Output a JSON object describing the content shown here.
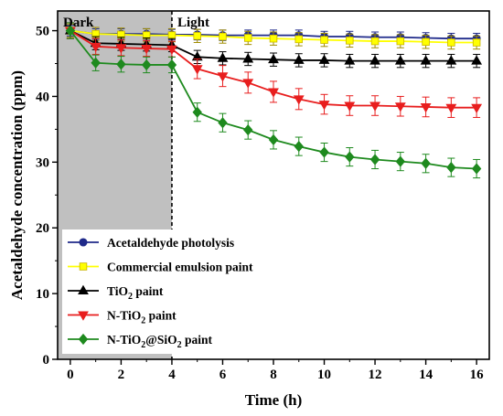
{
  "chart_data": {
    "type": "line",
    "xlabel": "Time (h)",
    "ylabel": "Acetaldehyde concentration (ppm)",
    "xlim": [
      -0.5,
      16.5
    ],
    "ylim": [
      0,
      53
    ],
    "xticks": [
      0,
      2,
      4,
      6,
      8,
      10,
      12,
      14,
      16
    ],
    "yticks": [
      0,
      10,
      20,
      30,
      40,
      50
    ],
    "regions": [
      {
        "label": "Dark",
        "x_start": -0.5,
        "x_end": 4,
        "fill": "#c0c0c0"
      },
      {
        "label": "Light",
        "x_start": 4,
        "x_end": 16.5,
        "fill": "#ffffff"
      }
    ],
    "legend_position": "bottom-left",
    "x": [
      0,
      1,
      2,
      3,
      4,
      5,
      6,
      7,
      8,
      9,
      10,
      11,
      12,
      13,
      14,
      15,
      16
    ],
    "series": [
      {
        "name": "Acetaldehyde photolysis",
        "name_main": "Acetaldehyde photolysis",
        "color": "#1f2a8a",
        "marker": "circle",
        "values": [
          50.0,
          49.5,
          49.5,
          49.5,
          49.4,
          49.4,
          49.3,
          49.3,
          49.3,
          49.3,
          49.1,
          49.1,
          49.0,
          49.0,
          48.9,
          48.8,
          48.8
        ],
        "err": [
          0.8,
          0.8,
          0.8,
          0.8,
          0.8,
          0.8,
          0.8,
          0.8,
          0.8,
          0.8,
          0.8,
          0.8,
          0.8,
          0.8,
          0.8,
          0.8,
          0.8
        ]
      },
      {
        "name": "Commercial emulsion paint",
        "name_main": "Commercial emulsion paint",
        "color": "#ffff00",
        "marker": "square",
        "values": [
          50.0,
          49.5,
          49.4,
          49.3,
          49.3,
          49.2,
          49.1,
          48.9,
          48.8,
          48.7,
          48.6,
          48.5,
          48.4,
          48.4,
          48.3,
          48.2,
          48.2
        ],
        "err": [
          1.0,
          1.0,
          1.0,
          1.0,
          1.0,
          1.0,
          1.0,
          1.0,
          1.0,
          1.0,
          1.0,
          1.0,
          1.0,
          1.0,
          1.0,
          1.0,
          1.0
        ]
      },
      {
        "name": "TiO2 paint",
        "name_main": "TiO",
        "name_sub": "2",
        "name_tail": " paint",
        "color": "#000000",
        "marker": "triangle-up",
        "values": [
          50.0,
          48.1,
          48.0,
          47.9,
          47.8,
          46.0,
          45.8,
          45.7,
          45.6,
          45.5,
          45.5,
          45.4,
          45.4,
          45.4,
          45.4,
          45.4,
          45.4
        ],
        "err": [
          1.2,
          1.0,
          1.0,
          1.0,
          1.0,
          1.0,
          1.0,
          1.0,
          1.0,
          1.0,
          1.0,
          1.0,
          1.0,
          1.0,
          1.0,
          1.0,
          1.0
        ]
      },
      {
        "name": "N-TiO2 paint",
        "name_main": "N-TiO",
        "name_sub": "2",
        "name_tail": " paint",
        "color": "#e81e1e",
        "marker": "triangle-down",
        "values": [
          50.0,
          47.6,
          47.4,
          47.3,
          47.2,
          44.2,
          43.1,
          42.1,
          40.7,
          39.6,
          38.8,
          38.6,
          38.6,
          38.5,
          38.4,
          38.3,
          38.3
        ],
        "err": [
          1.2,
          1.2,
          1.2,
          1.2,
          1.2,
          1.5,
          1.6,
          1.6,
          1.6,
          1.6,
          1.5,
          1.5,
          1.5,
          1.5,
          1.5,
          1.5,
          1.5
        ]
      },
      {
        "name": "N-TiO2@SiO2 paint",
        "name_main": "N-TiO",
        "name_sub": "2",
        "name_mid": "@SiO",
        "name_sub2": "2",
        "name_tail": " paint",
        "color": "#1e8a1e",
        "marker": "diamond",
        "values": [
          50.0,
          45.1,
          44.9,
          44.8,
          44.8,
          37.6,
          36.0,
          34.9,
          33.4,
          32.4,
          31.5,
          30.8,
          30.4,
          30.1,
          29.8,
          29.2,
          29.0
        ],
        "err": [
          1.2,
          1.2,
          1.2,
          1.2,
          1.2,
          1.4,
          1.4,
          1.4,
          1.4,
          1.4,
          1.4,
          1.4,
          1.4,
          1.4,
          1.4,
          1.4,
          1.4
        ]
      }
    ]
  }
}
